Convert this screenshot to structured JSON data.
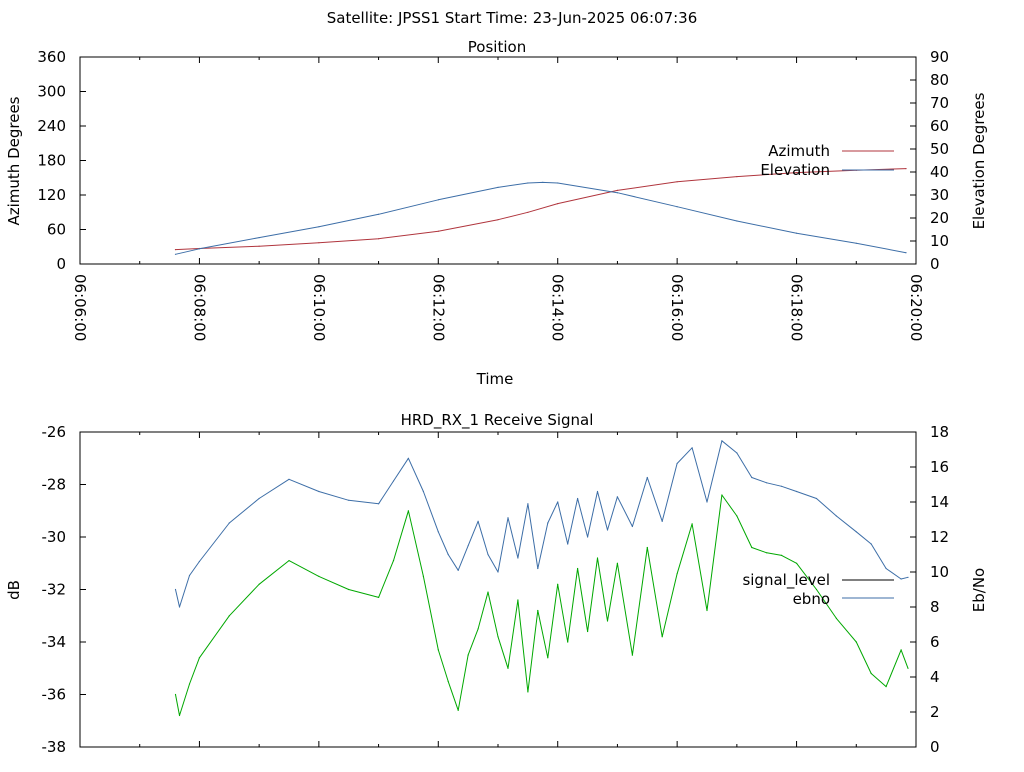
{
  "header": {
    "title": "Satellite: JPSS1    Start Time: 23-Jun-2025 06:07:36"
  },
  "colors": {
    "azimuth": "#b0353d",
    "elevation": "#3d6ea7",
    "signal_level": "#000000",
    "ebno": "#3d6ea7",
    "signal_trace": "#00a800"
  },
  "chart_data": [
    {
      "id": "position",
      "type": "line",
      "title": "Position",
      "xlabel": "Time",
      "ylabel": "Azimuth Degrees",
      "y2label": "Elevation Degrees",
      "xlim": [
        "06:06:00",
        "06:20:00"
      ],
      "ylim": [
        0,
        360
      ],
      "y2lim": [
        0,
        90
      ],
      "xticks": [
        "06:06:00",
        "06:08:00",
        "06:10:00",
        "06:12:00",
        "06:14:00",
        "06:16:00",
        "06:18:00",
        "06:20:00"
      ],
      "yticks": [
        0,
        60,
        120,
        180,
        240,
        300,
        360
      ],
      "y2ticks": [
        0,
        10,
        20,
        30,
        40,
        50,
        60,
        70,
        80,
        90
      ],
      "legend_position": "right",
      "series": [
        {
          "name": "Azimuth",
          "axis": "y",
          "x": [
            "06:07:36",
            "06:08:00",
            "06:09:00",
            "06:10:00",
            "06:11:00",
            "06:12:00",
            "06:13:00",
            "06:13:30",
            "06:14:00",
            "06:15:00",
            "06:16:00",
            "06:17:00",
            "06:18:00",
            "06:19:00",
            "06:19:50"
          ],
          "values": [
            25,
            27,
            31,
            37,
            44,
            57,
            77,
            90,
            105,
            128,
            143,
            152,
            159,
            163,
            166
          ]
        },
        {
          "name": "Elevation",
          "axis": "y2",
          "x": [
            "06:07:36",
            "06:08:00",
            "06:09:00",
            "06:10:00",
            "06:11:00",
            "06:12:00",
            "06:13:00",
            "06:13:30",
            "06:13:45",
            "06:14:00",
            "06:15:00",
            "06:16:00",
            "06:17:00",
            "06:18:00",
            "06:19:00",
            "06:19:50"
          ],
          "values": [
            4.2,
            6.6,
            11.5,
            16.2,
            21.6,
            27.9,
            33.3,
            35.2,
            35.5,
            35.2,
            31.0,
            24.9,
            18.7,
            13.4,
            9.0,
            4.9
          ]
        }
      ]
    },
    {
      "id": "receive-signal",
      "type": "line",
      "title": "HRD_RX_1 Receive Signal",
      "xlabel": "",
      "ylabel": "dB",
      "y2label": "Eb/No",
      "xlim": [
        "06:06:00",
        "06:20:00"
      ],
      "ylim": [
        -38,
        -26
      ],
      "y2lim": [
        0,
        18
      ],
      "yticks": [
        -38,
        -36,
        -34,
        -32,
        -30,
        -28,
        -26
      ],
      "y2ticks": [
        0,
        2,
        4,
        6,
        8,
        10,
        12,
        14,
        16,
        18
      ],
      "legend_position": "right",
      "series": [
        {
          "name": "signal_level",
          "axis": "y",
          "x": [
            "06:07:36",
            "06:07:40",
            "06:07:50",
            "06:08:00",
            "06:08:30",
            "06:09:00",
            "06:09:30",
            "06:10:00",
            "06:10:30",
            "06:11:00",
            "06:11:15",
            "06:11:30",
            "06:11:45",
            "06:12:00",
            "06:12:10",
            "06:12:20",
            "06:12:30",
            "06:12:40",
            "06:12:50",
            "06:13:00",
            "06:13:10",
            "06:13:20",
            "06:13:30",
            "06:13:40",
            "06:13:50",
            "06:14:00",
            "06:14:10",
            "06:14:20",
            "06:14:30",
            "06:14:40",
            "06:14:50",
            "06:15:00",
            "06:15:15",
            "06:15:30",
            "06:15:45",
            "06:16:00",
            "06:16:15",
            "06:16:30",
            "06:16:45",
            "06:17:00",
            "06:17:15",
            "06:17:30",
            "06:17:45",
            "06:18:00",
            "06:18:20",
            "06:18:40",
            "06:19:00",
            "06:19:15",
            "06:19:30",
            "06:19:45",
            "06:19:52"
          ],
          "values": [
            -36.0,
            -36.8,
            -35.6,
            -34.6,
            -33.0,
            -31.8,
            -30.9,
            -31.5,
            -32.0,
            -32.3,
            -30.9,
            -29.0,
            -31.5,
            -34.3,
            -35.5,
            -36.6,
            -34.5,
            -33.5,
            -32.1,
            -33.8,
            -35.0,
            -32.4,
            -35.9,
            -32.8,
            -34.6,
            -31.8,
            -34.0,
            -31.2,
            -33.6,
            -30.8,
            -33.2,
            -31.0,
            -34.5,
            -30.4,
            -33.8,
            -31.4,
            -29.5,
            -32.8,
            -28.4,
            -29.2,
            -30.4,
            -30.6,
            -30.7,
            -31.0,
            -32.0,
            -33.1,
            -34.0,
            -35.2,
            -35.7,
            -34.3,
            -35.0
          ]
        },
        {
          "name": "ebno",
          "axis": "y2",
          "x": [
            "06:07:36",
            "06:07:40",
            "06:07:50",
            "06:08:00",
            "06:08:30",
            "06:09:00",
            "06:09:30",
            "06:10:00",
            "06:10:30",
            "06:11:00",
            "06:11:15",
            "06:11:30",
            "06:11:45",
            "06:12:00",
            "06:12:10",
            "06:12:20",
            "06:12:30",
            "06:12:40",
            "06:12:50",
            "06:13:00",
            "06:13:10",
            "06:13:20",
            "06:13:30",
            "06:13:40",
            "06:13:50",
            "06:14:00",
            "06:14:10",
            "06:14:20",
            "06:14:30",
            "06:14:40",
            "06:14:50",
            "06:15:00",
            "06:15:15",
            "06:15:30",
            "06:15:45",
            "06:16:00",
            "06:16:15",
            "06:16:30",
            "06:16:45",
            "06:17:00",
            "06:17:15",
            "06:17:30",
            "06:17:45",
            "06:18:00",
            "06:18:20",
            "06:18:40",
            "06:19:00",
            "06:19:15",
            "06:19:30",
            "06:19:45",
            "06:19:52"
          ],
          "values": [
            9.0,
            8.0,
            9.8,
            10.6,
            12.8,
            14.2,
            15.3,
            14.6,
            14.1,
            13.9,
            15.2,
            16.5,
            14.6,
            12.3,
            11.0,
            10.1,
            11.5,
            12.9,
            11.0,
            10.0,
            13.1,
            10.8,
            13.9,
            10.2,
            12.8,
            14.0,
            11.6,
            14.2,
            12.0,
            14.6,
            12.4,
            14.3,
            12.6,
            15.4,
            12.9,
            16.2,
            17.1,
            14.0,
            17.5,
            16.8,
            15.4,
            15.1,
            14.9,
            14.6,
            14.2,
            13.2,
            12.3,
            11.6,
            10.2,
            9.6,
            9.7
          ]
        }
      ]
    }
  ]
}
